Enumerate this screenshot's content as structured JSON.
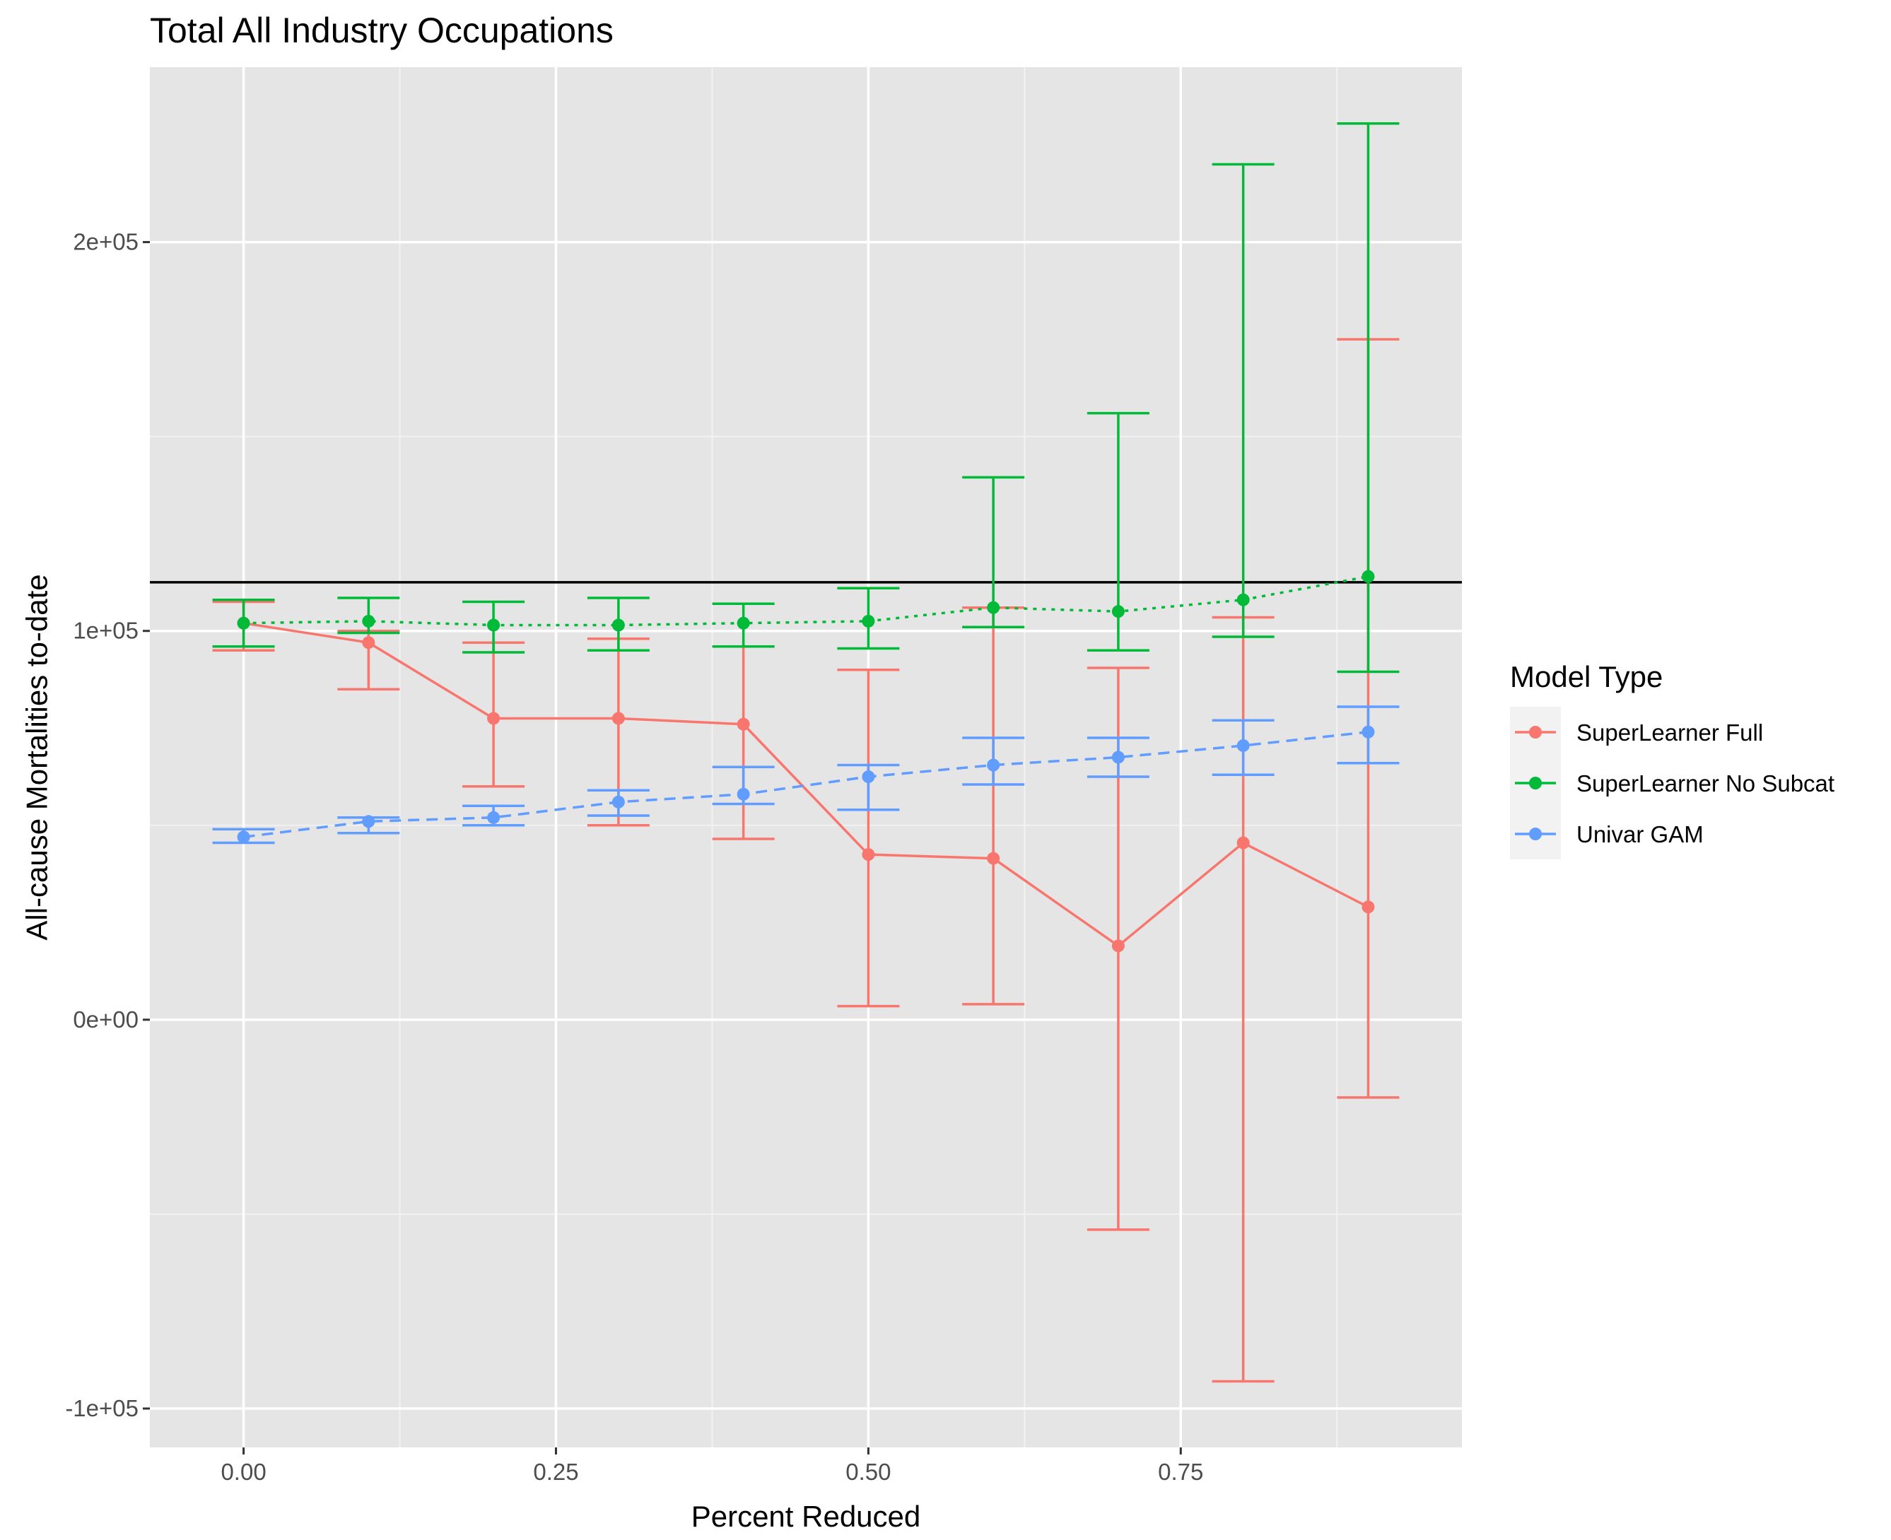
{
  "chart_data": {
    "type": "line",
    "title": "Total All Industry Occupations",
    "xlabel": "Percent Reduced",
    "ylabel": "All-cause Mortalities to-date",
    "xlim": [
      -0.075,
      0.975
    ],
    "ylim": [
      -110000,
      245000
    ],
    "x_ticks": [
      0.0,
      0.25,
      0.5,
      0.75
    ],
    "x_tick_labels": [
      "0.00",
      "0.25",
      "0.50",
      "0.75"
    ],
    "y_ticks": [
      -100000,
      0,
      100000,
      200000
    ],
    "y_tick_labels": [
      "-1e+05",
      "0e+00",
      "1e+05",
      "2e+05"
    ],
    "grid": true,
    "reference_line": {
      "y": 112500,
      "color": "#000000"
    },
    "legend": {
      "title": "Model Type",
      "placement": "right"
    },
    "x": [
      0.0,
      0.1,
      0.2,
      0.3,
      0.4,
      0.5,
      0.6,
      0.7,
      0.8,
      0.9
    ],
    "series": [
      {
        "name": "SuperLearner Full",
        "color": "#F8766D",
        "linestyle": "solid",
        "values": [
          102000,
          97000,
          77500,
          77500,
          76000,
          42500,
          41500,
          19000,
          45500,
          29000
        ],
        "lower": [
          95000,
          85000,
          60000,
          50000,
          46500,
          3500,
          4000,
          -54000,
          -93000,
          -20000
        ],
        "upper": [
          107500,
          100000,
          97000,
          98000,
          96000,
          90000,
          106000,
          90500,
          103500,
          175000
        ]
      },
      {
        "name": "SuperLearner No Subcat",
        "color": "#00BA38",
        "linestyle": "dotted",
        "values": [
          102000,
          102500,
          101500,
          101500,
          102000,
          102500,
          106000,
          105000,
          108000,
          114000
        ],
        "lower": [
          96000,
          99500,
          94500,
          95000,
          96000,
          95500,
          101000,
          95000,
          98500,
          89500
        ],
        "upper": [
          108000,
          108500,
          107500,
          108500,
          107000,
          111000,
          139500,
          156000,
          220000,
          230500
        ]
      },
      {
        "name": "Univar GAM",
        "color": "#619CFF",
        "linestyle": "dashed",
        "values": [
          47000,
          51000,
          52000,
          56000,
          58000,
          62500,
          65500,
          67500,
          70500,
          74000
        ],
        "lower": [
          45500,
          48000,
          50000,
          52500,
          55500,
          54000,
          60500,
          62500,
          63000,
          66000
        ],
        "upper": [
          49000,
          52000,
          55000,
          59000,
          65000,
          65500,
          72500,
          72500,
          77000,
          80500
        ]
      }
    ]
  }
}
